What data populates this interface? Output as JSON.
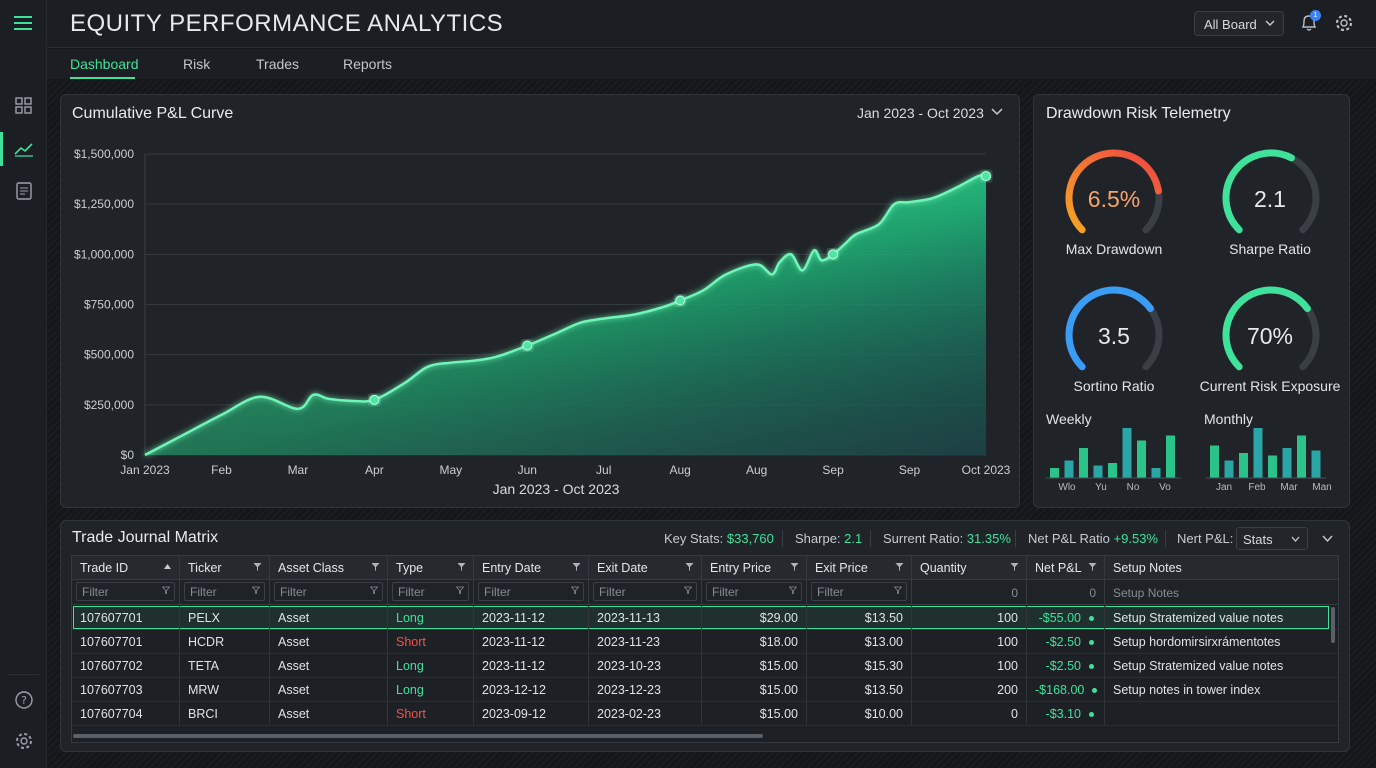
{
  "app": {
    "title": "EQUITY PERFORMANCE ANALYTICS"
  },
  "header": {
    "board_select": "All Board",
    "notification_count": "1"
  },
  "tabs": [
    {
      "label": "Dashboard",
      "active": true
    },
    {
      "label": "Risk"
    },
    {
      "label": "Trades"
    },
    {
      "label": "Reports"
    }
  ],
  "sidebar": {
    "icons": [
      "grid-icon",
      "chart-line-icon",
      "document-icon",
      "help-icon",
      "settings-icon"
    ]
  },
  "pnl_panel": {
    "title": "Cumulative P&L Curve",
    "range": "Jan 2023 - Oct 2023"
  },
  "chart_data": {
    "type": "area",
    "title": "Cumulative P&L Curve",
    "xlabel": "Jan 2023 - Oct 2023",
    "ylabel": "",
    "x_ticks": [
      "Jan 2023",
      "Feb",
      "Mar",
      "Apr",
      "May",
      "Jun",
      "Jul",
      "Aug",
      "Aug",
      "Sep",
      "Sep",
      "Oct 2023"
    ],
    "y_ticks": [
      "$0",
      "$250,000",
      "$500,000",
      "$750,000",
      "$1,000,000",
      "$1,250,000",
      "$1,500,000"
    ],
    "ylim": [
      0,
      1500000
    ],
    "grid": true,
    "x": [
      0,
      0.5,
      1,
      1.5,
      2,
      2.2,
      2.4,
      2.7,
      3,
      3.4,
      3.7,
      4,
      4.3,
      4.6,
      5,
      5.4,
      5.7,
      6,
      6.4,
      6.8,
      7,
      7.3,
      7.6,
      8,
      8.2,
      8.3,
      8.45,
      8.6,
      8.75,
      8.85,
      9,
      9.15,
      9.3,
      9.6,
      9.8,
      10,
      10.3,
      10.6,
      10.9,
      11
    ],
    "values": [
      0,
      100000,
      200000,
      290000,
      230000,
      300000,
      280000,
      270000,
      275000,
      360000,
      440000,
      460000,
      470000,
      490000,
      545000,
      610000,
      660000,
      680000,
      700000,
      740000,
      770000,
      820000,
      900000,
      950000,
      900000,
      960000,
      1000000,
      920000,
      1020000,
      970000,
      1000000,
      1050000,
      1100000,
      1150000,
      1250000,
      1260000,
      1280000,
      1330000,
      1390000,
      1390000
    ],
    "markers": [
      {
        "x": 3,
        "value": 275000
      },
      {
        "x": 5,
        "value": 545000
      },
      {
        "x": 7,
        "value": 770000
      },
      {
        "x": 9,
        "value": 1000000
      },
      {
        "x": 11,
        "value": 1390000
      }
    ]
  },
  "risk_panel": {
    "title": "Drawdown Risk Telemetry",
    "gauges": [
      {
        "value": "6.5%",
        "label": "Max Drawdown",
        "fraction": 0.8,
        "color": "#f59e42"
      },
      {
        "value": "2.1",
        "label": "Sharpe Ratio",
        "fraction": 0.6,
        "color": "#3ee29b"
      },
      {
        "value": "3.5",
        "label": "Sortino Ratio",
        "fraction": 0.7,
        "color": "#3b9cf6"
      },
      {
        "value": "70%",
        "label": "Current Risk Exposure",
        "fraction": 0.7,
        "color": "#3ee29b"
      }
    ],
    "weekly": {
      "title": "Weekly",
      "labels": [
        "Wlo",
        "Yu",
        "No",
        "Vo"
      ],
      "values": [
        0.2,
        0.35,
        0.6,
        0.25,
        0.3,
        1.0,
        0.75,
        0.2,
        0.85
      ]
    },
    "monthly": {
      "title": "Monthly",
      "labels": [
        "Jan",
        "Feb",
        "Mar",
        "Man"
      ],
      "values": [
        0.65,
        0.35,
        0.5,
        1.0,
        0.45,
        0.6,
        0.85,
        0.55
      ]
    }
  },
  "journal": {
    "title": "Trade Journal Matrix",
    "stats": {
      "key_stats_label": "Key Stats:",
      "key_stats_value": "$33,760",
      "sharpe_label": "Sharpe:",
      "sharpe_value": "2.1",
      "current_ratio_label": "Surrent Ratio:",
      "current_ratio_value": "31.35%",
      "net_ratio_label": "Net P&L Ratio",
      "net_ratio_value": "+9.53%",
      "net_pnl_label": "Nert P&L:",
      "select_value": "Stats"
    },
    "columns": [
      "Trade ID",
      "Ticker",
      "Asset Class",
      "Type",
      "Entry Date",
      "Exit Date",
      "Entry Price",
      "Exit Price",
      "Quantity",
      "Net P&L",
      "Setup Notes"
    ],
    "filter_placeholder": "Filter",
    "filter_quantity": "0",
    "filter_netpnl": "0",
    "filter_notes": "Setup Notes",
    "rows": [
      {
        "id": "107607701",
        "ticker": "PELX",
        "asset": "Asset",
        "type": "Long",
        "entry": "2023-11-12",
        "exit": "2023-11-13",
        "entry_price": "$29.00",
        "exit_price": "$13.50",
        "qty": "100",
        "pnl": "-$55.00",
        "notes": "Setup Stratemized value notes"
      },
      {
        "id": "107607701",
        "ticker": "HCDR",
        "asset": "Asset",
        "type": "Short",
        "entry": "2023-11-12",
        "exit": "2023-11-23",
        "entry_price": "$18.00",
        "exit_price": "$13.00",
        "qty": "100",
        "pnl": "-$2.50",
        "notes": "Setup hordomirsirxrámentotes"
      },
      {
        "id": "107607702",
        "ticker": "TETA",
        "asset": "Asset",
        "type": "Long",
        "entry": "2023-11-12",
        "exit": "2023-10-23",
        "entry_price": "$15.00",
        "exit_price": "$15.30",
        "qty": "100",
        "pnl": "-$2.50",
        "notes": "Setup Stratemized value notes"
      },
      {
        "id": "107607703",
        "ticker": "MRW",
        "asset": "Asset",
        "type": "Long",
        "entry": "2023-12-12",
        "exit": "2023-12-23",
        "entry_price": "$15.00",
        "exit_price": "$13.50",
        "qty": "200",
        "pnl": "-$168.00",
        "notes": "Setup notes in tower index"
      },
      {
        "id": "107607704",
        "ticker": "BRCI",
        "asset": "Asset",
        "type": "Short",
        "entry": "2023-09-12",
        "exit": "2023-02-23",
        "entry_price": "$15.00",
        "exit_price": "$10.00",
        "qty": "0",
        "pnl": "-$3.10",
        "notes": ""
      }
    ]
  }
}
